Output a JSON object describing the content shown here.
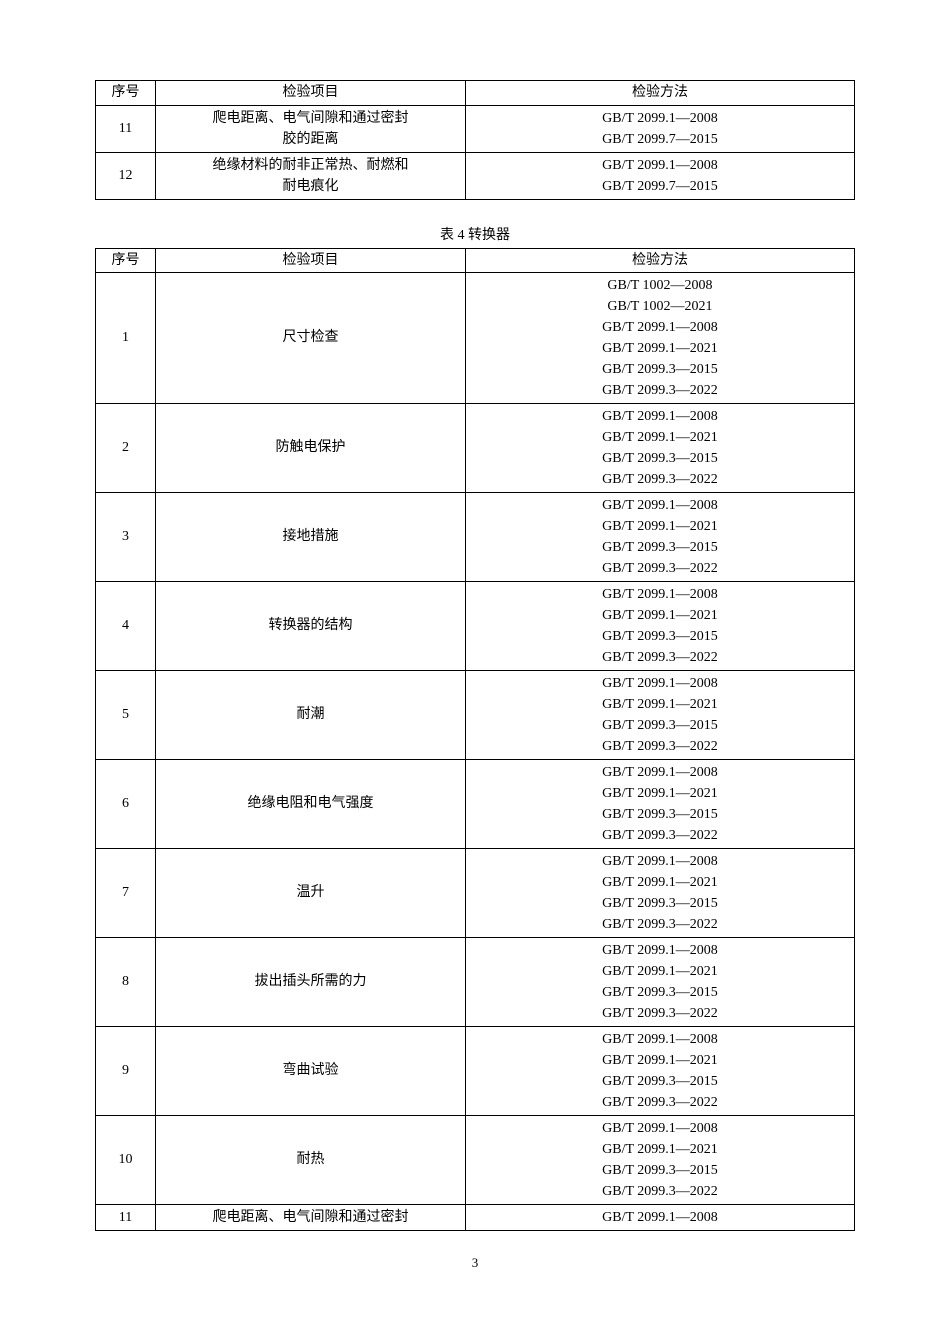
{
  "table1": {
    "headers": {
      "seq": "序号",
      "item": "检验项目",
      "method": "检验方法"
    },
    "rows": [
      {
        "seq": "11",
        "item_line1": "爬电距离、电气间隙和通过密封",
        "item_line2": "胶的距离",
        "method_line1": "GB/T 2099.1—2008",
        "method_line2": "GB/T 2099.7—2015"
      },
      {
        "seq": "12",
        "item_line1": "绝缘材料的耐非正常热、耐燃和",
        "item_line2": "耐电痕化",
        "method_line1": "GB/T 2099.1—2008",
        "method_line2": "GB/T 2099.7—2015"
      }
    ]
  },
  "table2": {
    "caption": "表 4  转换器",
    "headers": {
      "seq": "序号",
      "item": "检验项目",
      "method": "检验方法"
    },
    "rows": [
      {
        "seq": "1",
        "item": "尺寸检查",
        "methods": [
          "GB/T 1002—2008",
          "GB/T 1002—2021",
          "GB/T 2099.1—2008",
          "GB/T 2099.1—2021",
          "GB/T 2099.3—2015",
          "GB/T 2099.3—2022"
        ]
      },
      {
        "seq": "2",
        "item": "防触电保护",
        "methods": [
          "GB/T 2099.1—2008",
          "GB/T 2099.1—2021",
          "GB/T 2099.3—2015",
          "GB/T 2099.3—2022"
        ]
      },
      {
        "seq": "3",
        "item": "接地措施",
        "methods": [
          "GB/T 2099.1—2008",
          "GB/T 2099.1—2021",
          "GB/T 2099.3—2015",
          "GB/T 2099.3—2022"
        ]
      },
      {
        "seq": "4",
        "item": "转换器的结构",
        "methods": [
          "GB/T 2099.1—2008",
          "GB/T 2099.1—2021",
          "GB/T 2099.3—2015",
          "GB/T 2099.3—2022"
        ]
      },
      {
        "seq": "5",
        "item": "耐潮",
        "methods": [
          "GB/T 2099.1—2008",
          "GB/T 2099.1—2021",
          "GB/T 2099.3—2015",
          "GB/T 2099.3—2022"
        ]
      },
      {
        "seq": "6",
        "item": "绝缘电阻和电气强度",
        "methods": [
          "GB/T 2099.1—2008",
          "GB/T 2099.1—2021",
          "GB/T 2099.3—2015",
          "GB/T 2099.3—2022"
        ]
      },
      {
        "seq": "7",
        "item": "温升",
        "methods": [
          "GB/T 2099.1—2008",
          "GB/T 2099.1—2021",
          "GB/T 2099.3—2015",
          "GB/T 2099.3—2022"
        ]
      },
      {
        "seq": "8",
        "item": "拔出插头所需的力",
        "methods": [
          "GB/T 2099.1—2008",
          "GB/T 2099.1—2021",
          "GB/T 2099.3—2015",
          "GB/T 2099.3—2022"
        ]
      },
      {
        "seq": "9",
        "item": "弯曲试验",
        "methods": [
          "GB/T 2099.1—2008",
          "GB/T 2099.1—2021",
          "GB/T 2099.3—2015",
          "GB/T 2099.3—2022"
        ]
      },
      {
        "seq": "10",
        "item": "耐热",
        "methods": [
          "GB/T 2099.1—2008",
          "GB/T 2099.1—2021",
          "GB/T 2099.3—2015",
          "GB/T 2099.3—2022"
        ]
      },
      {
        "seq": "11",
        "item": "爬电距离、电气间隙和通过密封",
        "methods": [
          "GB/T 2099.1—2008"
        ]
      }
    ]
  },
  "page_number": "3"
}
